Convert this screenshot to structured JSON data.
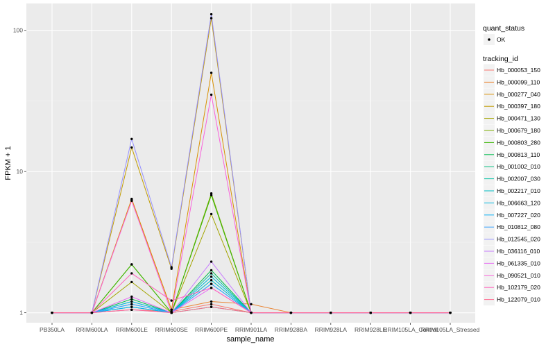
{
  "chart_data": {
    "type": "line",
    "xlabel": "sample_name",
    "ylabel": "FPKM + 1",
    "y_scale": "log10",
    "ylim": [
      0.85,
      155
    ],
    "y_ticks": [
      1,
      10,
      100
    ],
    "y_tick_labels": [
      "1",
      "10",
      "100"
    ],
    "grid": true,
    "legend_position": "right",
    "categories": [
      "PB350LA",
      "RRIM600LA",
      "RRIM600LE",
      "RRIM600SE",
      "RRIM600PE",
      "RRIM901LA",
      "RRIM928BA",
      "RRIM928LA",
      "RRIM928LE",
      "RRIM105LA_Control",
      "RRIM105LA_Stressed"
    ],
    "point_legend": {
      "title": "quant_status",
      "items": [
        "OK"
      ]
    },
    "color_legend_title": "tracking_id",
    "series": [
      {
        "name": "Hb_000053_150",
        "color": "#F8766D",
        "values": [
          1,
          1,
          1.05,
          1.02,
          1.15,
          1.0,
          1,
          1,
          1,
          1,
          1
        ]
      },
      {
        "name": "Hb_000099_110",
        "color": "#EA8331",
        "values": [
          1,
          1,
          6.3,
          1.05,
          1.2,
          1.15,
          1,
          1,
          1,
          1,
          1
        ]
      },
      {
        "name": "Hb_000277_040",
        "color": "#D89000",
        "values": [
          1,
          1,
          6.4,
          1.05,
          50,
          1.0,
          1,
          1,
          1,
          1,
          1
        ]
      },
      {
        "name": "Hb_000397_180",
        "color": "#C09B00",
        "values": [
          1,
          1,
          14.8,
          2.05,
          122,
          1.0,
          1,
          1,
          1,
          1,
          1
        ]
      },
      {
        "name": "Hb_000471_130",
        "color": "#A3A500",
        "values": [
          1,
          1,
          1.65,
          1.0,
          5.0,
          1.0,
          1,
          1,
          1,
          1,
          1
        ]
      },
      {
        "name": "Hb_000679_180",
        "color": "#7CAE00",
        "values": [
          1,
          1,
          2.2,
          1.0,
          7.0,
          1.0,
          1,
          1,
          1,
          1,
          1
        ]
      },
      {
        "name": "Hb_000803_280",
        "color": "#39B600",
        "values": [
          1,
          1,
          2.2,
          1.0,
          6.8,
          1.0,
          1,
          1,
          1,
          1,
          1
        ]
      },
      {
        "name": "Hb_000813_110",
        "color": "#00BB4E",
        "values": [
          1,
          1,
          1.25,
          1.0,
          2.0,
          1.0,
          1,
          1,
          1,
          1,
          1
        ]
      },
      {
        "name": "Hb_001002_010",
        "color": "#00BF7D",
        "values": [
          1,
          1,
          1.1,
          1.0,
          1.1,
          1.0,
          1,
          1,
          1,
          1,
          1
        ]
      },
      {
        "name": "Hb_002007_030",
        "color": "#00C1A3",
        "values": [
          1,
          1,
          1.2,
          1.0,
          1.9,
          1.0,
          1,
          1,
          1,
          1,
          1
        ]
      },
      {
        "name": "Hb_002217_010",
        "color": "#00BFC4",
        "values": [
          1,
          1,
          1.15,
          1.0,
          1.7,
          1.0,
          1,
          1,
          1,
          1,
          1
        ]
      },
      {
        "name": "Hb_006663_120",
        "color": "#00BAE0",
        "values": [
          1,
          1,
          1.2,
          1.0,
          1.8,
          1.0,
          1,
          1,
          1,
          1,
          1
        ]
      },
      {
        "name": "Hb_007227_020",
        "color": "#00B0F6",
        "values": [
          1,
          1,
          1.1,
          1.0,
          1.6,
          1.0,
          1,
          1,
          1,
          1,
          1
        ]
      },
      {
        "name": "Hb_010812_080",
        "color": "#35A2FF",
        "values": [
          1,
          1,
          1.15,
          1.0,
          1.6,
          1.0,
          1,
          1,
          1,
          1,
          1
        ]
      },
      {
        "name": "Hb_012545_020",
        "color": "#9590FF",
        "values": [
          1,
          1,
          17,
          2.1,
          130,
          1.0,
          1,
          1,
          1,
          1,
          1
        ]
      },
      {
        "name": "Hb_036116_010",
        "color": "#C77CFF",
        "values": [
          1,
          1,
          1.05,
          1.0,
          2.3,
          1.0,
          1,
          1,
          1,
          1,
          1
        ]
      },
      {
        "name": "Hb_061335_010",
        "color": "#E76BF3",
        "values": [
          1,
          1,
          1.3,
          1.0,
          1.5,
          1.0,
          1,
          1,
          1,
          1,
          1
        ]
      },
      {
        "name": "Hb_090521_010",
        "color": "#FA62DB",
        "values": [
          1,
          1,
          6.2,
          1.0,
          35,
          1.0,
          1,
          1,
          1,
          1,
          1
        ]
      },
      {
        "name": "Hb_102179_020",
        "color": "#FF62BC",
        "values": [
          1,
          1,
          1.9,
          1.22,
          1.5,
          1.0,
          1,
          1,
          1,
          1,
          1
        ]
      },
      {
        "name": "Hb_122079_010",
        "color": "#FF6C91",
        "values": [
          1,
          1,
          1.05,
          1.0,
          1.1,
          1.0,
          1,
          1,
          1,
          1,
          1
        ]
      }
    ]
  }
}
